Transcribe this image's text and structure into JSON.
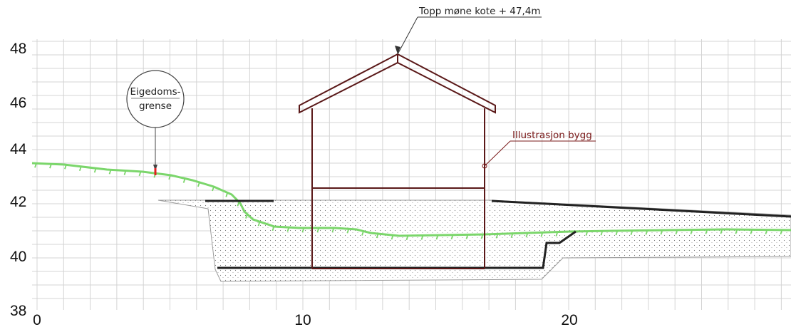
{
  "diagram": {
    "axes": {
      "x_ticks": [
        "0",
        "10",
        "20"
      ],
      "y_ticks": [
        "48",
        "46",
        "44",
        "42",
        "40",
        "38"
      ]
    },
    "annotations": {
      "ridge_label": "Topp møne kote + 47,4m",
      "property_line_label_1": "Eigedoms-",
      "property_line_label_2": "grense",
      "building_label": "Illustrasjon bygg"
    },
    "colors": {
      "building": "#5a1818",
      "terrain_existing": "#7bd66b",
      "terrain_new": "#222222",
      "fill_hatch": "#888888",
      "grid": "#d4d4d4",
      "property_marker": "#e02020"
    }
  }
}
